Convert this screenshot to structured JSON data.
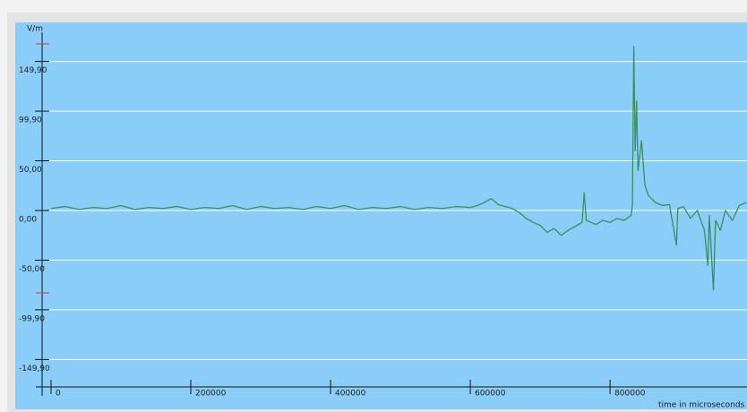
{
  "chart_data": {
    "type": "line",
    "y_label": "V/m",
    "x_label": "time in microseconds",
    "color": "#3b8f5e",
    "grid": true,
    "xlim": [
      -12800,
      996000
    ],
    "ylim": [
      -177.5,
      186.5
    ],
    "xticks": [
      0,
      200000,
      400000,
      600000,
      800000
    ],
    "yticks": [
      {
        "value": 149.9,
        "label": "149,90"
      },
      {
        "value": 99.9,
        "label": "99,90"
      },
      {
        "value": 50,
        "label": "50,00"
      },
      {
        "value": 0,
        "label": "0,00"
      },
      {
        "value": -50,
        "label": "-50,00"
      },
      {
        "value": -99.9,
        "label": "-99,90"
      },
      {
        "value": -149.9,
        "label": "-149,90"
      }
    ],
    "x": [
      0,
      20000,
      40000,
      60000,
      80000,
      100000,
      120000,
      140000,
      160000,
      180000,
      200000,
      220000,
      240000,
      260000,
      280000,
      300000,
      320000,
      340000,
      360000,
      380000,
      400000,
      420000,
      440000,
      460000,
      480000,
      500000,
      520000,
      540000,
      560000,
      580000,
      600000,
      610000,
      620000,
      630000,
      640000,
      650000,
      660000,
      670000,
      680000,
      690000,
      700000,
      710000,
      720000,
      730000,
      740000,
      750000,
      760000,
      763000,
      766000,
      780000,
      790000,
      800000,
      810000,
      820000,
      830000,
      832000,
      834000,
      836000,
      838000,
      840000,
      845000,
      850000,
      855000,
      865000,
      875000,
      885000,
      895000,
      897000,
      905000,
      915000,
      925000,
      935000,
      940000,
      942000,
      948000,
      951000,
      958000,
      965000,
      975000,
      985000,
      995000
    ],
    "values": [
      2,
      4,
      1,
      3,
      2,
      5,
      1,
      3,
      2,
      4,
      1,
      3,
      2,
      5,
      1,
      4,
      2,
      3,
      1,
      4,
      2,
      5,
      1,
      3,
      2,
      4,
      1,
      3,
      2,
      4,
      3,
      5,
      8,
      12,
      6,
      4,
      2,
      -2,
      -8,
      -12,
      -15,
      -22,
      -18,
      -25,
      -20,
      -16,
      -12,
      18,
      -10,
      -14,
      -10,
      -12,
      -8,
      -10,
      -5,
      5,
      165,
      60,
      110,
      40,
      70,
      25,
      15,
      8,
      5,
      6,
      -35,
      2,
      4,
      -8,
      0,
      -20,
      -55,
      -5,
      -80,
      -10,
      -20,
      0,
      -10,
      5,
      8
    ]
  }
}
